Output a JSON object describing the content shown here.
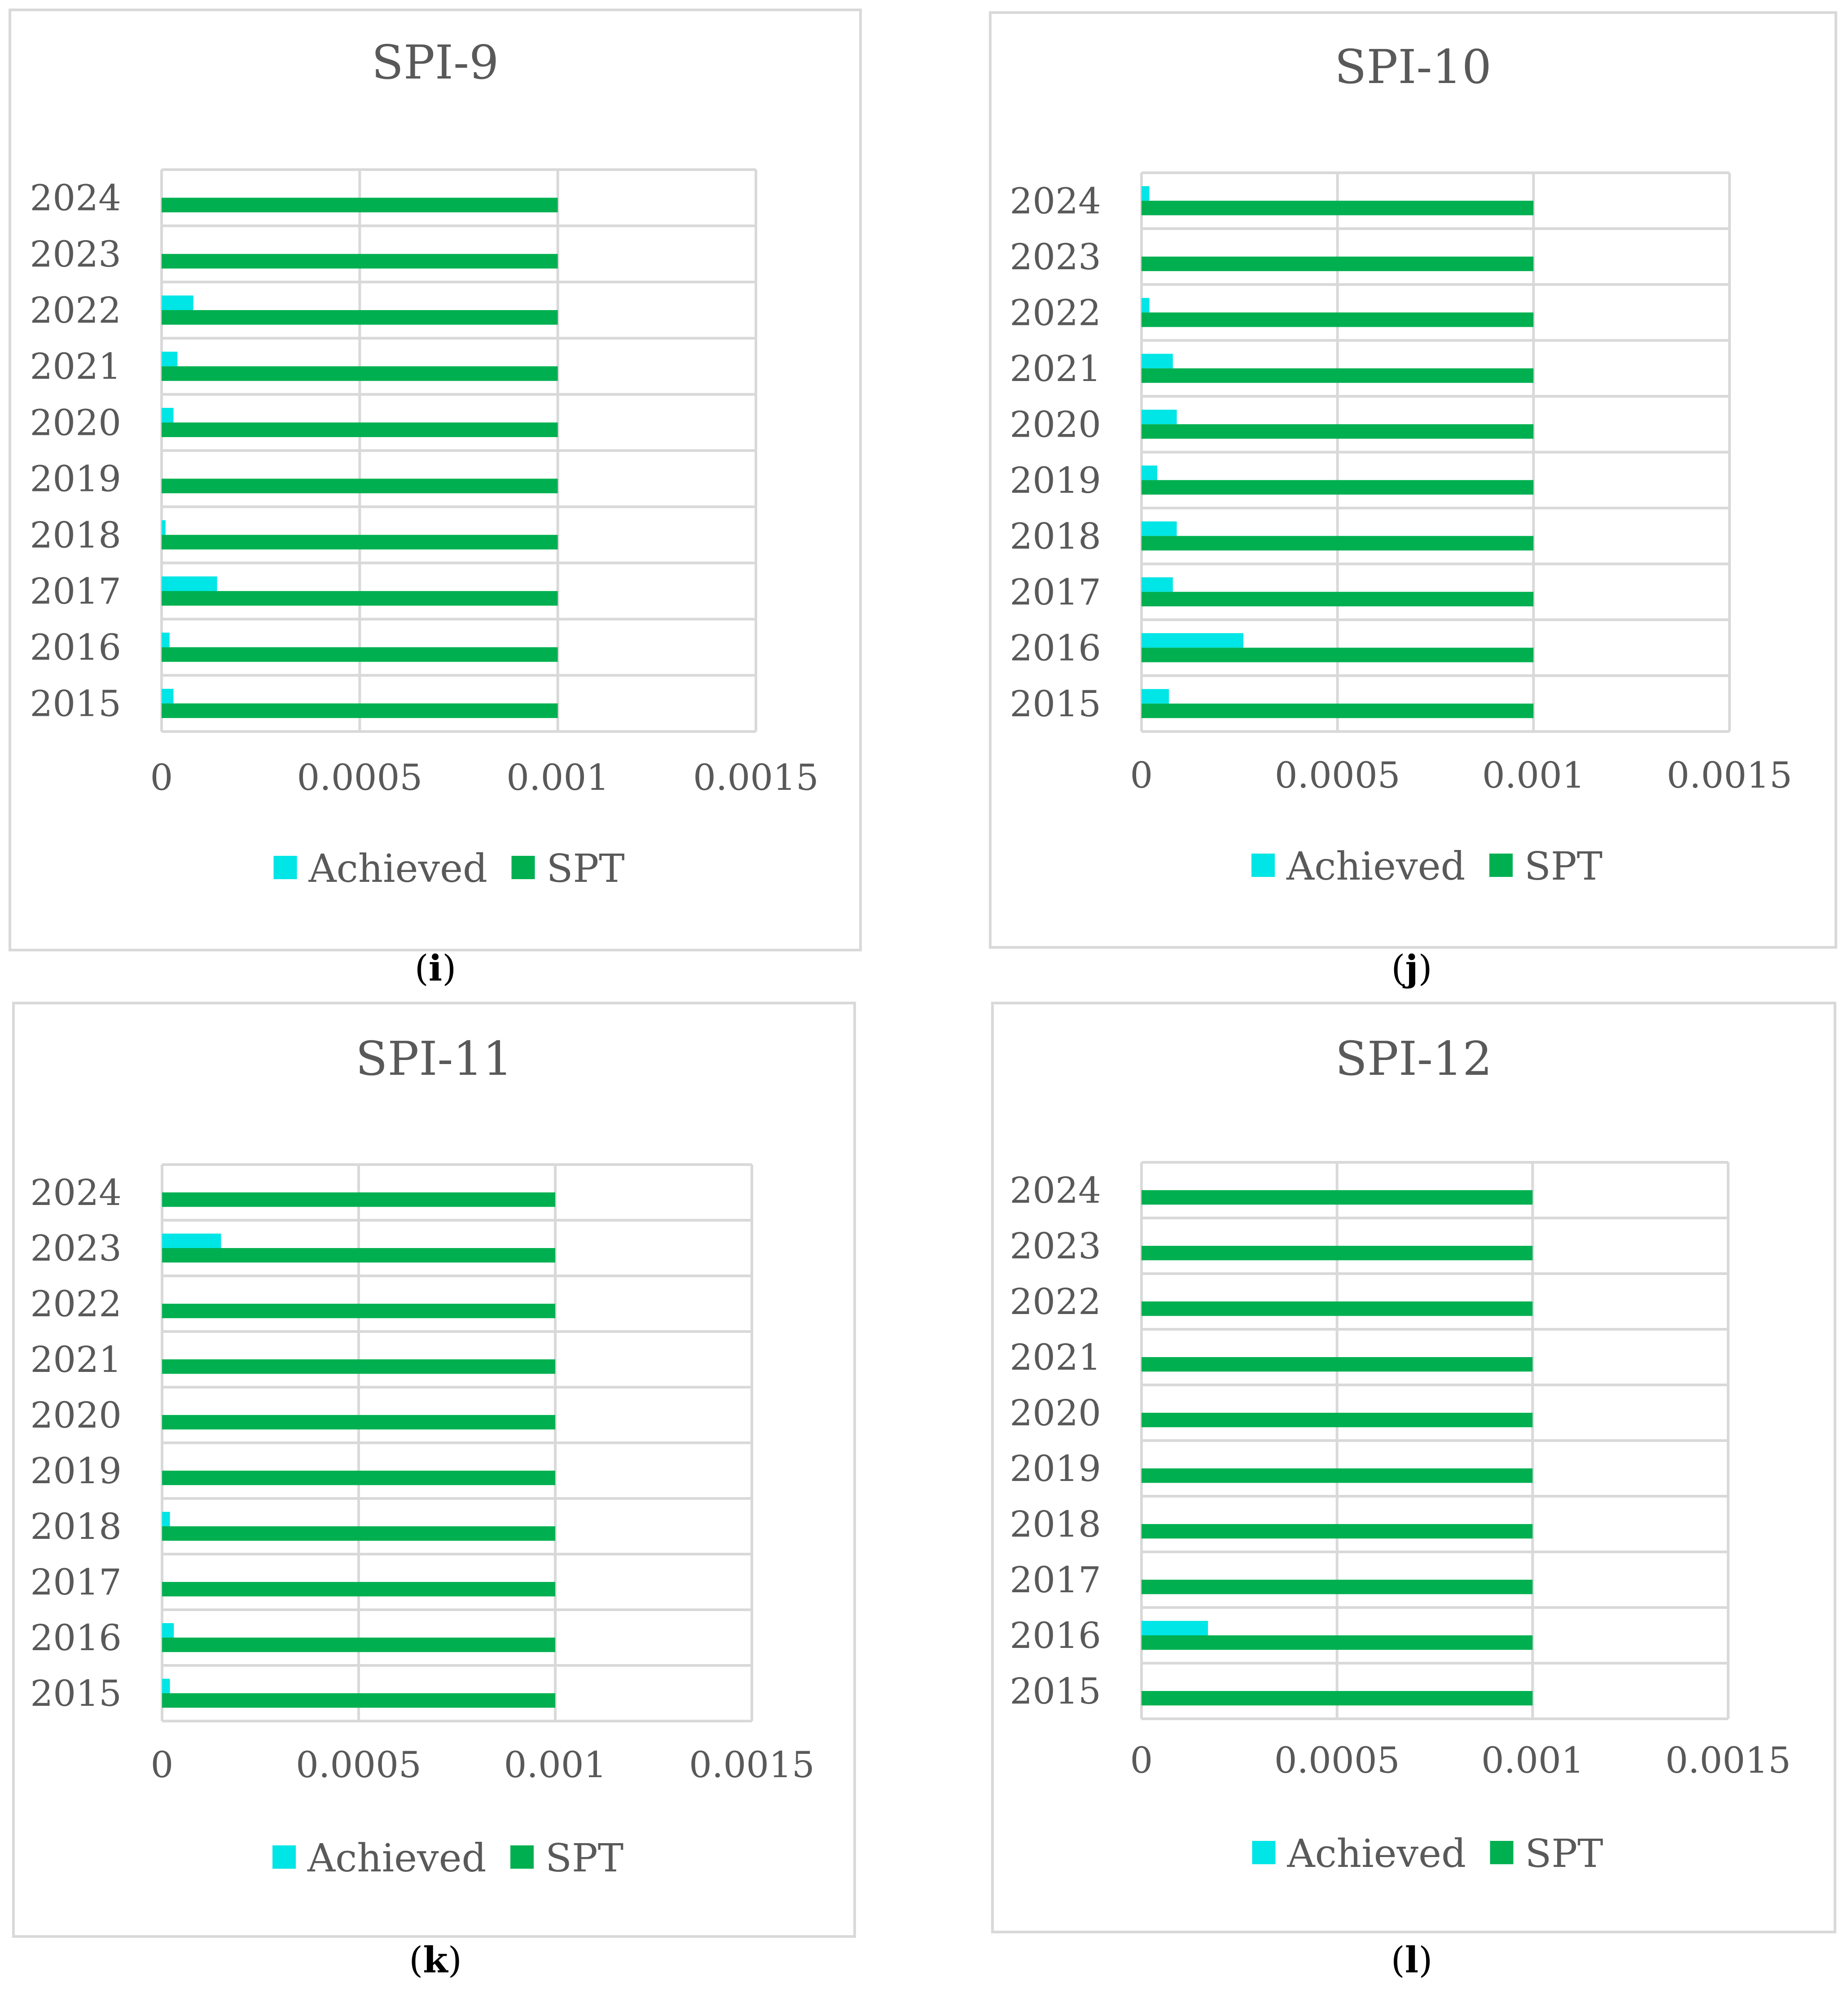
{
  "colors": {
    "achieved": "#00E5E5",
    "spt": "#00B050",
    "grid": "#D9D9D9",
    "border": "#D9D9D9",
    "text": "#595959"
  },
  "chart_data": [
    {
      "type": "bar",
      "orientation": "horizontal",
      "title": "SPI-9",
      "caption_letter": "i",
      "categories": [
        "2015",
        "2016",
        "2017",
        "2018",
        "2019",
        "2020",
        "2021",
        "2022",
        "2023",
        "2024"
      ],
      "series": [
        {
          "name": "Achieved",
          "values": [
            3e-05,
            2e-05,
            0.00014,
            1e-05,
            0,
            3e-05,
            4e-05,
            8e-05,
            0,
            0
          ]
        },
        {
          "name": "SPT",
          "values": [
            0.001,
            0.001,
            0.001,
            0.001,
            0.001,
            0.001,
            0.001,
            0.001,
            0.001,
            0.001
          ]
        }
      ],
      "xlim": [
        0,
        0.0015
      ],
      "xticks": [
        "0",
        "0.0005",
        "0.001",
        "0.0015"
      ],
      "grid": true,
      "legend": "bottom"
    },
    {
      "type": "bar",
      "orientation": "horizontal",
      "title": "SPI-10",
      "caption_letter": "j",
      "categories": [
        "2015",
        "2016",
        "2017",
        "2018",
        "2019",
        "2020",
        "2021",
        "2022",
        "2023",
        "2024"
      ],
      "series": [
        {
          "name": "Achieved",
          "values": [
            7e-05,
            0.00026,
            8e-05,
            9e-05,
            4e-05,
            9e-05,
            8e-05,
            2e-05,
            0,
            2e-05
          ]
        },
        {
          "name": "SPT",
          "values": [
            0.001,
            0.001,
            0.001,
            0.001,
            0.001,
            0.001,
            0.001,
            0.001,
            0.001,
            0.001
          ]
        }
      ],
      "xlim": [
        0,
        0.0015
      ],
      "xticks": [
        "0",
        "0.0005",
        "0.001",
        "0.0015"
      ],
      "grid": true,
      "legend": "bottom"
    },
    {
      "type": "bar",
      "orientation": "horizontal",
      "title": "SPI-11",
      "caption_letter": "k",
      "categories": [
        "2015",
        "2016",
        "2017",
        "2018",
        "2019",
        "2020",
        "2021",
        "2022",
        "2023",
        "2024"
      ],
      "series": [
        {
          "name": "Achieved",
          "values": [
            2e-05,
            3e-05,
            0,
            2e-05,
            0,
            0,
            0,
            0,
            0.00015,
            0
          ]
        },
        {
          "name": "SPT",
          "values": [
            0.001,
            0.001,
            0.001,
            0.001,
            0.001,
            0.001,
            0.001,
            0.001,
            0.001,
            0.001
          ]
        }
      ],
      "xlim": [
        0,
        0.0015
      ],
      "xticks": [
        "0",
        "0.0005",
        "0.001",
        "0.0015"
      ],
      "grid": true,
      "legend": "bottom"
    },
    {
      "type": "bar",
      "orientation": "horizontal",
      "title": "SPI-12",
      "caption_letter": "l",
      "categories": [
        "2015",
        "2016",
        "2017",
        "2018",
        "2019",
        "2020",
        "2021",
        "2022",
        "2023",
        "2024"
      ],
      "series": [
        {
          "name": "Achieved",
          "values": [
            0,
            0.00017,
            0,
            0,
            0,
            0,
            0,
            0,
            0,
            0
          ]
        },
        {
          "name": "SPT",
          "values": [
            0.001,
            0.001,
            0.001,
            0.001,
            0.001,
            0.001,
            0.001,
            0.001,
            0.001,
            0.001
          ]
        }
      ],
      "xlim": [
        0,
        0.0015
      ],
      "xticks": [
        "0",
        "0.0005",
        "0.001",
        "0.0015"
      ],
      "grid": true,
      "legend": "bottom"
    }
  ]
}
